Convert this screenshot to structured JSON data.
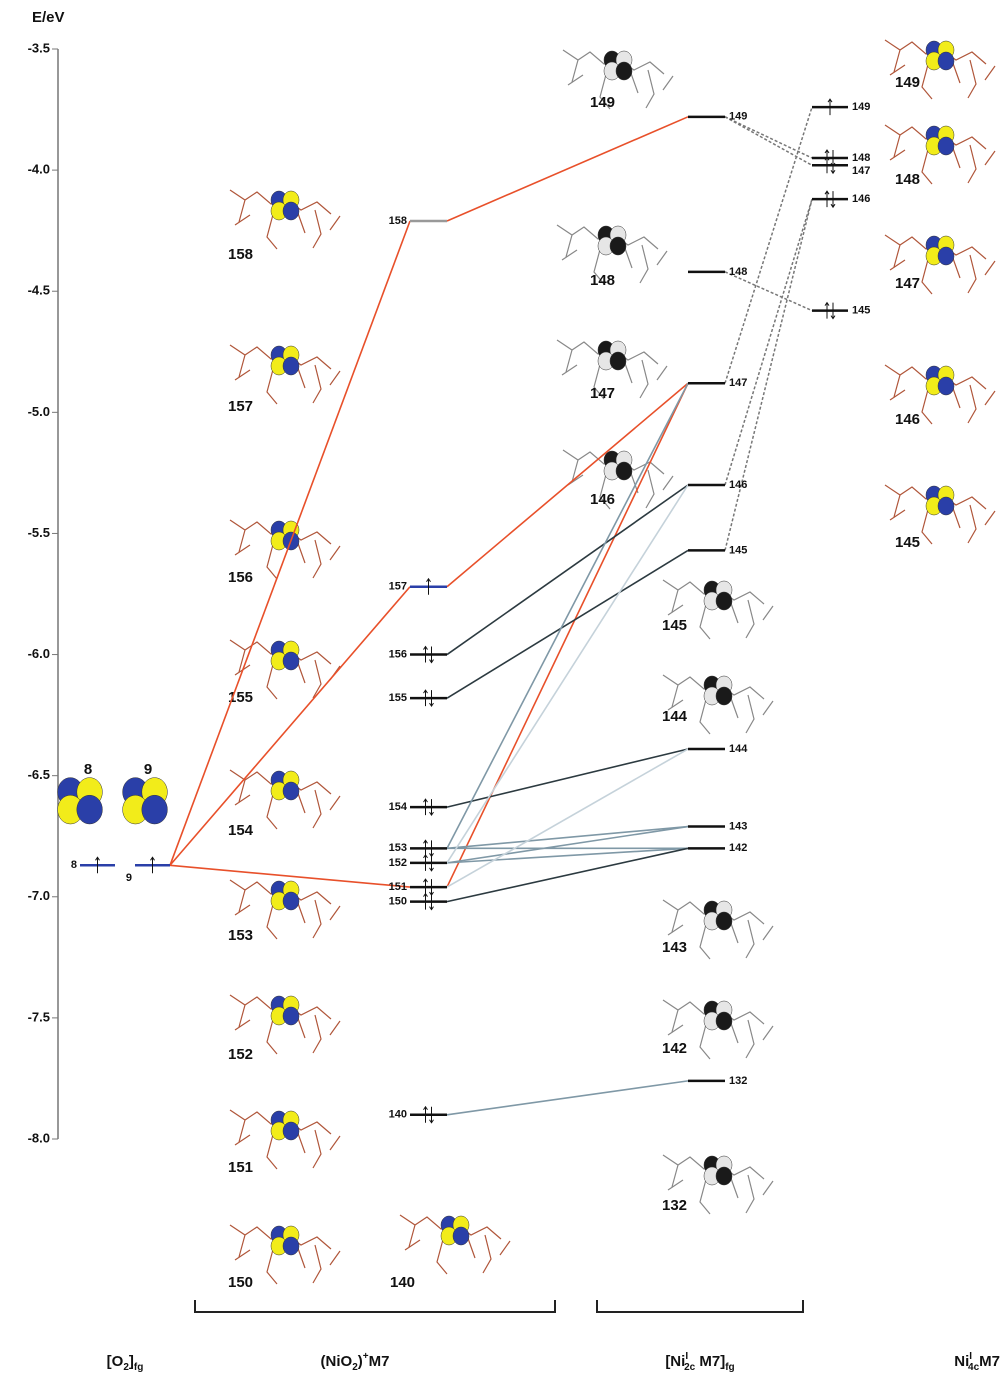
{
  "axis": {
    "label": "E/eV",
    "ylim": [
      -8.0,
      -3.5
    ],
    "yticks": [
      -3.5,
      {
        "value": -4.0,
        "label": "-4.0"
      },
      -4.5,
      {
        "value": -5.0,
        "label": "-5.0"
      },
      -5.5,
      {
        "value": -6.0,
        "label": "-6.0"
      },
      -6.5,
      {
        "value": -7.0,
        "label": "-7.0"
      },
      -7.5,
      {
        "value": -8.0,
        "label": "-8.0"
      }
    ]
  },
  "columns": [
    {
      "label_parts": [
        {
          "t": "[O"
        },
        {
          "t": "2",
          "sub": true
        },
        {
          "t": "]"
        },
        {
          "t": "fg",
          "sub": true
        }
      ],
      "levels": [
        {
          "label": "8",
          "energy": -6.87,
          "electrons": 1,
          "color": "#2a3fa8"
        },
        {
          "label": "9",
          "energy": -6.87,
          "electrons": 1,
          "color": "#2a3fa8"
        }
      ]
    },
    {
      "label_parts": [
        {
          "t": "(NiO"
        },
        {
          "t": "2",
          "sub": true
        },
        {
          "t": ")"
        },
        {
          "t": "+",
          "sup": true
        },
        {
          "t": "M7"
        }
      ],
      "levels": [
        {
          "label": "158",
          "energy": -4.21,
          "electrons": 0,
          "color": "#999999"
        },
        {
          "label": "157",
          "energy": -5.72,
          "electrons": 1,
          "color": "#2a3fa8"
        },
        {
          "label": "156",
          "energy": -6.0,
          "electrons": 2,
          "color": "#111111"
        },
        {
          "label": "155",
          "energy": -6.18,
          "electrons": 2,
          "color": "#111111"
        },
        {
          "label": "154",
          "energy": -6.63,
          "electrons": 2,
          "color": "#111111"
        },
        {
          "label": "153",
          "energy": -6.8,
          "electrons": 2,
          "color": "#111111"
        },
        {
          "label": "152",
          "energy": -6.86,
          "electrons": 2,
          "color": "#111111"
        },
        {
          "label": "151",
          "energy": -6.96,
          "electrons": 2,
          "color": "#111111"
        },
        {
          "label": "150",
          "energy": -7.02,
          "electrons": 2,
          "color": "#111111"
        },
        {
          "label": "140",
          "energy": -7.9,
          "electrons": 2,
          "color": "#111111"
        }
      ]
    },
    {
      "label_parts": [
        {
          "t": "[Ni"
        },
        {
          "t": "I",
          "sup": true
        },
        {
          "t": "2c",
          "sub": true
        },
        {
          "t": " M7]"
        },
        {
          "t": "fg",
          "sub": true
        }
      ],
      "levels": [
        {
          "label": "149",
          "energy": -3.78,
          "electrons": 0,
          "color": "#111111"
        },
        {
          "label": "148",
          "energy": -4.42,
          "electrons": 0,
          "color": "#111111"
        },
        {
          "label": "147",
          "energy": -4.88,
          "electrons": 0,
          "color": "#111111"
        },
        {
          "label": "146",
          "energy": -5.3,
          "electrons": 0,
          "color": "#111111"
        },
        {
          "label": "145",
          "energy": -5.57,
          "electrons": 0,
          "color": "#111111"
        },
        {
          "label": "144",
          "energy": -6.39,
          "electrons": 0,
          "color": "#111111"
        },
        {
          "label": "143",
          "energy": -6.71,
          "electrons": 0,
          "color": "#111111"
        },
        {
          "label": "142",
          "energy": -6.8,
          "electrons": 0,
          "color": "#111111"
        },
        {
          "label": "132",
          "energy": -7.76,
          "electrons": 0,
          "color": "#111111"
        }
      ]
    },
    {
      "label_parts": [
        {
          "t": "Ni"
        },
        {
          "t": "I",
          "sup": true
        },
        {
          "t": "4c",
          "sub": true
        },
        {
          "t": "M7"
        }
      ],
      "levels": [
        {
          "label": "149",
          "energy": -3.74,
          "electrons": 1,
          "color": "#111111"
        },
        {
          "label": "148",
          "energy": -3.95,
          "electrons": 2,
          "color": "#111111"
        },
        {
          "label": "147",
          "energy": -3.98,
          "electrons": 2,
          "color": "#111111"
        },
        {
          "label": "146",
          "energy": -4.12,
          "electrons": 2,
          "color": "#111111"
        },
        {
          "label": "145",
          "energy": -4.58,
          "electrons": 2,
          "color": "#111111"
        }
      ]
    }
  ],
  "orbital_labels": [
    [
      "8",
      "9"
    ],
    [
      "158",
      "157",
      "156",
      "155",
      "154",
      "153",
      "152",
      "151",
      "150",
      "140"
    ],
    [
      "149",
      "148",
      "147",
      "146",
      "145",
      "144",
      "143",
      "142",
      "132"
    ],
    [
      "149",
      "148",
      "147",
      "146",
      "145"
    ]
  ]
}
